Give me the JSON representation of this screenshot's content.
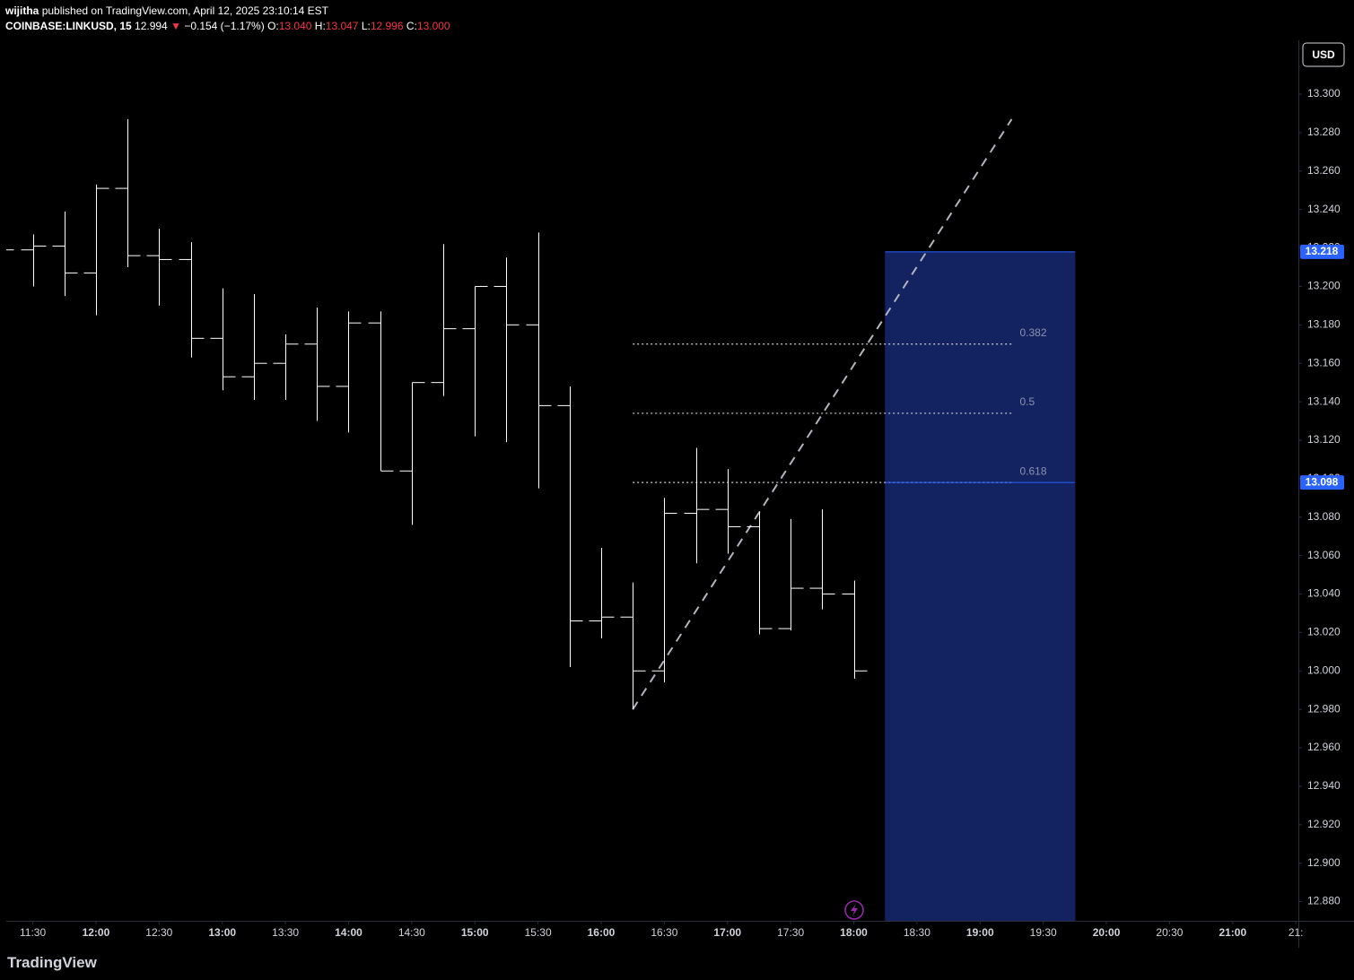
{
  "header": {
    "author": "wijitha",
    "published": "published on TradingView.com, April 12, 2025 23:10:14 EST",
    "symbol": "COINBASE:LINKUSD, 15",
    "last": "12.994",
    "arrow": "▼",
    "change": "−0.154 (−1.17%)",
    "o_label": "O:",
    "o": "13.040",
    "h_label": "H:",
    "h": "13.047",
    "l_label": "L:",
    "l": "12.996",
    "c_label": "C:",
    "c": "13.000"
  },
  "currency_button": "USD",
  "footer": {
    "brand": "TradingView"
  },
  "chart_data": {
    "type": "ohlc",
    "color": "#ffffff",
    "x": [
      11.25,
      11.5,
      11.75,
      12,
      12.25,
      12.5,
      12.75,
      13,
      13.25,
      13.5,
      13.75,
      14,
      14.25,
      14.5,
      14.75,
      15,
      15.25,
      15.5,
      15.75,
      16,
      16.25,
      16.5,
      16.75,
      17,
      17.25,
      17.5,
      17.75,
      18
    ],
    "open": [
      13.219,
      13.219,
      13.221,
      13.207,
      13.251,
      13.216,
      13.214,
      13.173,
      13.153,
      13.16,
      13.17,
      13.148,
      13.181,
      13.104,
      13.15,
      13.178,
      13.2,
      13.18,
      13.138,
      13.026,
      13.028,
      13.0,
      13.082,
      13.084,
      13.075,
      13.022,
      13.043,
      13.04
    ],
    "high": [
      13.222,
      13.227,
      13.239,
      13.253,
      13.287,
      13.23,
      13.223,
      13.199,
      13.196,
      13.175,
      13.189,
      13.187,
      13.187,
      13.15,
      13.222,
      13.2,
      13.215,
      13.228,
      13.148,
      13.064,
      13.046,
      13.09,
      13.116,
      13.105,
      13.083,
      13.079,
      13.084,
      13.047
    ],
    "low": [
      13.215,
      13.2,
      13.195,
      13.185,
      13.21,
      13.19,
      13.163,
      13.146,
      13.141,
      13.141,
      13.13,
      13.124,
      13.104,
      13.076,
      13.143,
      13.122,
      13.119,
      13.095,
      13.002,
      13.017,
      12.98,
      12.994,
      13.056,
      13.061,
      13.019,
      13.021,
      13.032,
      12.996
    ],
    "close": [
      13.219,
      13.221,
      13.207,
      13.251,
      13.216,
      13.214,
      13.173,
      13.153,
      13.16,
      13.17,
      13.148,
      13.181,
      13.104,
      13.15,
      13.178,
      13.2,
      13.18,
      13.138,
      13.026,
      13.028,
      13.0,
      13.082,
      13.084,
      13.075,
      13.022,
      13.043,
      13.04,
      13.0
    ],
    "xlim": [
      11.29,
      21.52
    ],
    "ylim": [
      12.87,
      13.328
    ],
    "xticks": [
      {
        "value": 11.5,
        "label": "11:30"
      },
      {
        "value": 12,
        "label": "12:00"
      },
      {
        "value": 12.5,
        "label": "12:30"
      },
      {
        "value": 13,
        "label": "13:00"
      },
      {
        "value": 13.5,
        "label": "13:30"
      },
      {
        "value": 14,
        "label": "14:00"
      },
      {
        "value": 14.5,
        "label": "14:30"
      },
      {
        "value": 15,
        "label": "15:00"
      },
      {
        "value": 15.5,
        "label": "15:30"
      },
      {
        "value": 16,
        "label": "16:00"
      },
      {
        "value": 16.5,
        "label": "16:30"
      },
      {
        "value": 17,
        "label": "17:00"
      },
      {
        "value": 17.5,
        "label": "17:30"
      },
      {
        "value": 18,
        "label": "18:00"
      },
      {
        "value": 18.5,
        "label": "18:30"
      },
      {
        "value": 19,
        "label": "19:00"
      },
      {
        "value": 19.5,
        "label": "19:30"
      },
      {
        "value": 20,
        "label": "20:00"
      },
      {
        "value": 20.5,
        "label": "20:30"
      },
      {
        "value": 21,
        "label": "21:00"
      },
      {
        "value": 21.5,
        "label": "21:"
      }
    ],
    "yticks": [
      {
        "value": 12.88,
        "label": "12.880"
      },
      {
        "value": 12.9,
        "label": "12.900"
      },
      {
        "value": 12.92,
        "label": "12.920"
      },
      {
        "value": 12.94,
        "label": "12.940"
      },
      {
        "value": 12.96,
        "label": "12.960"
      },
      {
        "value": 12.98,
        "label": "12.980"
      },
      {
        "value": 13.0,
        "label": "13.000"
      },
      {
        "value": 13.02,
        "label": "13.020"
      },
      {
        "value": 13.04,
        "label": "13.040"
      },
      {
        "value": 13.06,
        "label": "13.060"
      },
      {
        "value": 13.08,
        "label": "13.080"
      },
      {
        "value": 13.1,
        "label": "13.100"
      },
      {
        "value": 13.12,
        "label": "13.120"
      },
      {
        "value": 13.14,
        "label": "13.140"
      },
      {
        "value": 13.16,
        "label": "13.160"
      },
      {
        "value": 13.18,
        "label": "13.180"
      },
      {
        "value": 13.2,
        "label": "13.200"
      },
      {
        "value": 13.22,
        "label": "13.220"
      },
      {
        "value": 13.24,
        "label": "13.240"
      },
      {
        "value": 13.26,
        "label": "13.260"
      },
      {
        "value": 13.28,
        "label": "13.280"
      },
      {
        "value": 13.3,
        "label": "13.300"
      }
    ],
    "trend_line": {
      "x": [
        16.25,
        19.25
      ],
      "y": [
        12.98,
        13.287
      ],
      "color": "#b2b5be"
    },
    "fib": {
      "x": [
        16.25,
        19.25
      ],
      "color": "#d1d4dc",
      "levels": [
        {
          "label": "0.382",
          "value": 13.17
        },
        {
          "label": "0.5",
          "value": 13.134
        },
        {
          "label": "0.618",
          "value": 13.098
        }
      ]
    },
    "box": {
      "x": [
        18.25,
        19.75
      ],
      "y": [
        12.87,
        13.218
      ],
      "color": "#132260",
      "edge": "#2962ff"
    },
    "price_labels": [
      {
        "value": 13.218,
        "label": "13.218"
      },
      {
        "value": 13.098,
        "label": "13.098"
      }
    ]
  }
}
